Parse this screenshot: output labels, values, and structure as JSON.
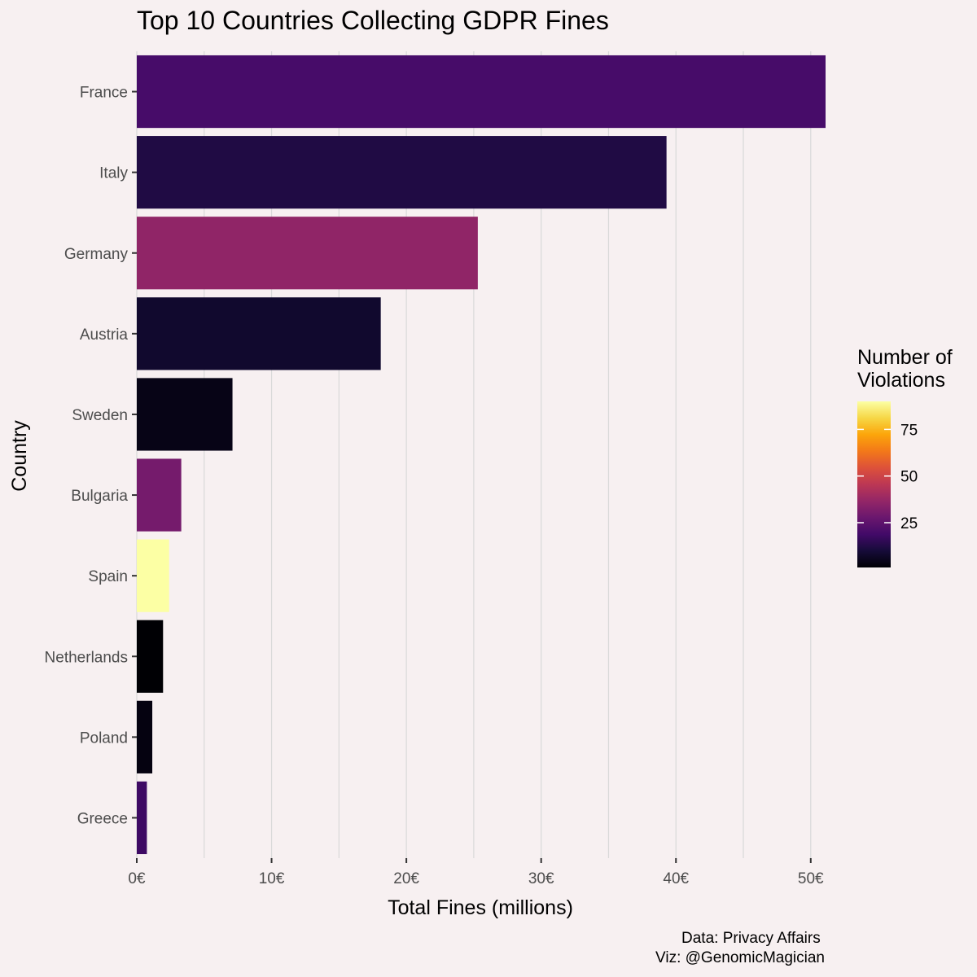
{
  "chart_data": {
    "type": "bar",
    "orientation": "horizontal",
    "title": "Top 10 Countries Collecting GDPR Fines",
    "xlabel": "Total Fines (millions)",
    "ylabel": "Country",
    "categories": [
      "France",
      "Italy",
      "Germany",
      "Austria",
      "Sweden",
      "Bulgaria",
      "Spain",
      "Netherlands",
      "Poland",
      "Greece"
    ],
    "values": [
      51.1,
      39.3,
      25.3,
      18.1,
      7.1,
      3.3,
      2.4,
      1.95,
      1.15,
      0.75
    ],
    "violations": [
      20,
      12,
      36,
      8,
      4,
      30,
      90,
      1,
      3,
      18
    ],
    "xlim": [
      0,
      51.1
    ],
    "xticks": [
      0,
      10,
      20,
      30,
      40,
      50
    ],
    "xtick_labels": [
      "0€",
      "10€",
      "20€",
      "30€",
      "40€",
      "50€"
    ],
    "grid": true,
    "legend": {
      "title_lines": [
        "Number of",
        "Violations"
      ],
      "position": "right",
      "min": 1,
      "max": 90,
      "ticks": [
        25,
        50,
        75
      ],
      "tick_labels": [
        "25",
        "50",
        "75"
      ]
    },
    "caption_lines": [
      "Data: Privacy Affairs",
      "Viz: @GenomicMagician"
    ]
  },
  "colors": {
    "background": "#f7f0f1",
    "gridline": "#d9d9d9",
    "axis_tick": "#333333",
    "palette": "inferno"
  }
}
